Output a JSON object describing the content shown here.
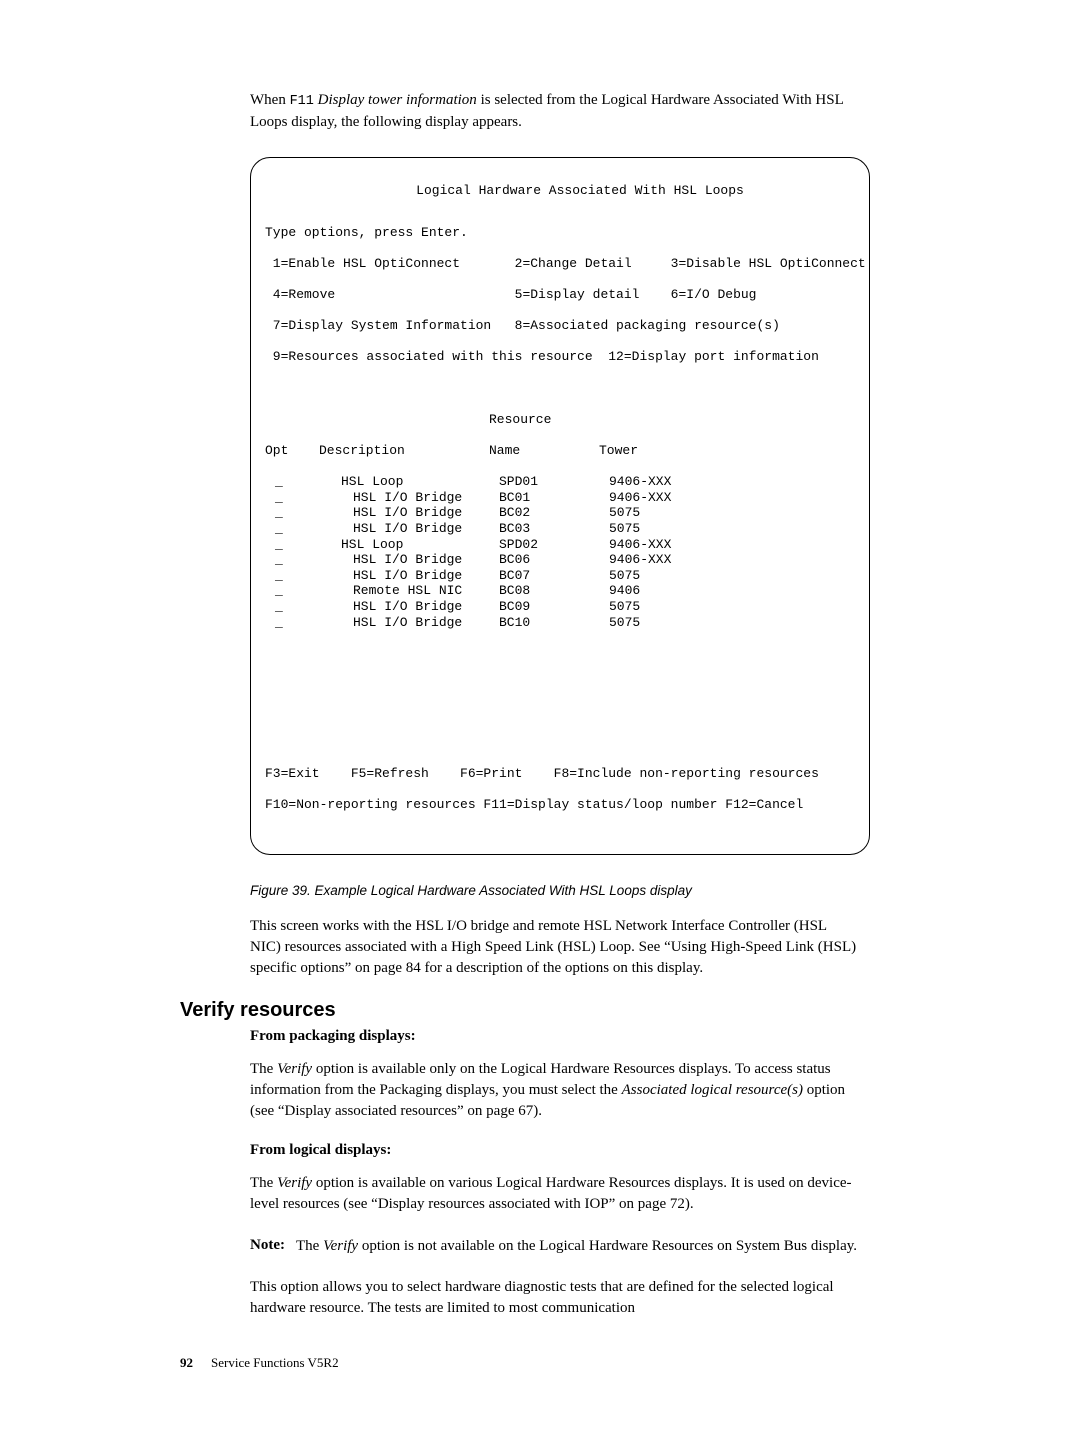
{
  "intro_para": {
    "pre": "When ",
    "key": "F11",
    "italic": " Display tower information",
    "post": " is selected from the Logical Hardware Associated With HSL Loops display, the following display appears."
  },
  "terminal": {
    "title": "Logical Hardware Associated With HSL Loops",
    "instruction": "Type options, press Enter.",
    "opts": [
      " 1=Enable HSL OptiConnect       2=Change Detail     3=Disable HSL OptiConnect",
      " 4=Remove                       5=Display detail    6=I/O Debug",
      " 7=Display System Information   8=Associated packaging resource(s)",
      " 9=Resources associated with this resource  12=Display port information"
    ],
    "header_resource": "Resource",
    "cols": {
      "opt": "Opt",
      "desc": "Description",
      "name": "Name",
      "tower": "Tower"
    },
    "rows": [
      {
        "indent": 1,
        "desc": "HSL Loop",
        "name": "SPD01",
        "tower": "9406-XXX"
      },
      {
        "indent": 2,
        "desc": "HSL I/O Bridge",
        "name": "BC01",
        "tower": "9406-XXX"
      },
      {
        "indent": 2,
        "desc": "HSL I/O Bridge",
        "name": "BC02",
        "tower": "5075"
      },
      {
        "indent": 2,
        "desc": "HSL I/O Bridge",
        "name": "BC03",
        "tower": "5075"
      },
      {
        "indent": 1,
        "desc": "HSL Loop",
        "name": "SPD02",
        "tower": "9406-XXX"
      },
      {
        "indent": 2,
        "desc": "HSL I/O Bridge",
        "name": "BC06",
        "tower": "9406-XXX"
      },
      {
        "indent": 2,
        "desc": "HSL I/O Bridge",
        "name": "BC07",
        "tower": "5075"
      },
      {
        "indent": 2,
        "desc": "Remote HSL NIC",
        "name": "BC08",
        "tower": "9406"
      },
      {
        "indent": 2,
        "desc": "HSL I/O Bridge",
        "name": "BC09",
        "tower": "5075"
      },
      {
        "indent": 2,
        "desc": "HSL I/O Bridge",
        "name": "BC10",
        "tower": "5075"
      }
    ],
    "fkeys1": "F3=Exit    F5=Refresh    F6=Print    F8=Include non-reporting resources",
    "fkeys2": "F10=Non-reporting resources F11=Display status/loop number F12=Cancel"
  },
  "figure_caption": "Figure 39. Example Logical Hardware Associated With HSL Loops display",
  "para_after_fig": "This screen works with the HSL I/O bridge and remote HSL Network Interface Controller (HSL NIC) resources associated with a High Speed Link (HSL) Loop. See “Using High-Speed Link (HSL) specific options” on page 84 for a description of the options on this display.",
  "section_heading": "Verify resources",
  "sub1": "From packaging displays:",
  "para1": {
    "pre": "The ",
    "italic1": "Verify",
    "mid": " option is available only on the Logical Hardware Resources displays. To access status information from the Packaging displays, you must select the ",
    "italic2": "Associated logical resource(s)",
    "post": " option (see “Display associated resources” on page 67)."
  },
  "sub2": "From logical displays:",
  "para2": {
    "pre": "The ",
    "italic": "Verify",
    "post": " option is available on various Logical Hardware Resources displays. It is used on device-level resources (see “Display resources associated with IOP” on page 72)."
  },
  "note": {
    "label": "Note:",
    "pre": "The ",
    "italic": "Verify",
    "post": " option is not available on the Logical Hardware Resources on System Bus display."
  },
  "para3": "This option allows you to select hardware diagnostic tests that are defined for the selected logical hardware resource. The tests are limited to most communication",
  "footer": {
    "pagenum": "92",
    "doc": "Service Functions V5R2"
  }
}
